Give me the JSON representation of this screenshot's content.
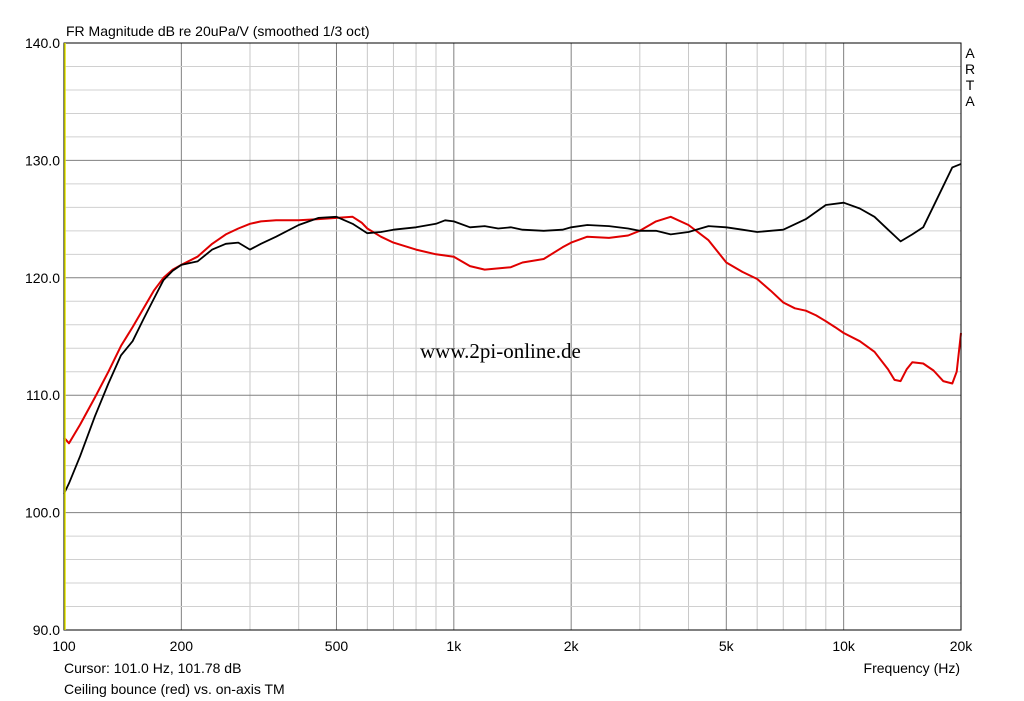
{
  "chart_data": {
    "type": "line",
    "title": "FR Magnitude dB re 20uPa/V (smoothed 1/3 oct)",
    "xlabel": "Frequency (Hz)",
    "xscale": "log",
    "xlim": [
      100,
      20000
    ],
    "ylim": [
      90,
      140
    ],
    "grid": true,
    "x_ticks": [
      {
        "value": 100,
        "label": "100"
      },
      {
        "value": 200,
        "label": "200"
      },
      {
        "value": 500,
        "label": "500"
      },
      {
        "value": 1000,
        "label": "1k"
      },
      {
        "value": 2000,
        "label": "2k"
      },
      {
        "value": 5000,
        "label": "5k"
      },
      {
        "value": 10000,
        "label": "10k"
      },
      {
        "value": 20000,
        "label": "20k"
      }
    ],
    "y_ticks": [
      {
        "value": 90,
        "label": "90.0"
      },
      {
        "value": 100,
        "label": "100.0"
      },
      {
        "value": 110,
        "label": "110.0"
      },
      {
        "value": 120,
        "label": "120.0"
      },
      {
        "value": 130,
        "label": "130.0"
      },
      {
        "value": 140,
        "label": "140.0"
      }
    ],
    "series": [
      {
        "color": "#e00000",
        "x": [
          100,
          103,
          110,
          120,
          130,
          140,
          150,
          160,
          170,
          180,
          190,
          200,
          220,
          240,
          260,
          280,
          300,
          320,
          350,
          400,
          450,
          500,
          550,
          580,
          600,
          650,
          700,
          800,
          900,
          1000,
          1100,
          1200,
          1300,
          1400,
          1500,
          1700,
          1900,
          2000,
          2200,
          2500,
          2800,
          3000,
          3300,
          3600,
          4000,
          4500,
          5000,
          5500,
          6000,
          6500,
          7000,
          7500,
          8000,
          8500,
          9000,
          9500,
          10000,
          11000,
          12000,
          13000,
          13500,
          14000,
          14500,
          15000,
          16000,
          17000,
          18000,
          19000,
          19500,
          20000
        ],
        "y": [
          106.4,
          105.9,
          107.5,
          109.8,
          112.0,
          114.2,
          115.8,
          117.4,
          118.9,
          120.0,
          120.7,
          121.1,
          121.8,
          122.9,
          123.7,
          124.2,
          124.6,
          124.8,
          124.9,
          124.9,
          125.0,
          125.1,
          125.2,
          124.7,
          124.2,
          123.5,
          123.0,
          122.4,
          122.0,
          121.8,
          121.0,
          120.7,
          120.8,
          120.9,
          121.3,
          121.6,
          122.6,
          123.0,
          123.5,
          123.4,
          123.6,
          124.0,
          124.8,
          125.2,
          124.5,
          123.2,
          121.3,
          120.5,
          119.9,
          118.9,
          117.9,
          117.4,
          117.2,
          116.8,
          116.3,
          115.8,
          115.3,
          114.6,
          113.7,
          112.2,
          111.3,
          111.2,
          112.2,
          112.8,
          112.7,
          112.1,
          111.2,
          111.0,
          112.0,
          115.3
        ]
      },
      {
        "color": "#000000",
        "x": [
          100,
          103,
          110,
          120,
          130,
          140,
          150,
          160,
          170,
          180,
          190,
          200,
          220,
          240,
          260,
          280,
          300,
          320,
          350,
          400,
          450,
          500,
          550,
          600,
          650,
          700,
          800,
          900,
          950,
          1000,
          1100,
          1200,
          1300,
          1400,
          1500,
          1700,
          1900,
          2000,
          2200,
          2500,
          2800,
          3000,
          3300,
          3600,
          4000,
          4500,
          5000,
          5500,
          6000,
          7000,
          8000,
          9000,
          10000,
          11000,
          12000,
          13000,
          14000,
          15000,
          16000,
          17000,
          18000,
          19000,
          20000
        ],
        "y": [
          101.6,
          102.5,
          104.8,
          108.2,
          111.0,
          113.4,
          114.6,
          116.5,
          118.2,
          119.8,
          120.6,
          121.1,
          121.4,
          122.4,
          122.9,
          123.0,
          122.4,
          122.9,
          123.5,
          124.5,
          125.1,
          125.2,
          124.6,
          123.8,
          123.9,
          124.1,
          124.3,
          124.6,
          124.9,
          124.8,
          124.3,
          124.4,
          124.2,
          124.3,
          124.1,
          124.0,
          124.1,
          124.3,
          124.5,
          124.4,
          124.2,
          124.0,
          124.0,
          123.7,
          123.9,
          124.4,
          124.3,
          124.1,
          123.9,
          124.1,
          125.0,
          126.2,
          126.4,
          125.9,
          125.2,
          124.1,
          123.1,
          123.7,
          124.3,
          126.1,
          127.8,
          129.4,
          129.7
        ]
      }
    ]
  },
  "header": {
    "title": "FR Magnitude dB re 20uPa/V (smoothed 1/3 oct)",
    "vertical_brand": [
      "A",
      "R",
      "T",
      "A"
    ]
  },
  "watermark": "www.2pi-online.de",
  "footer": {
    "cursor_text": "Cursor: 101.0 Hz, 101.78 dB",
    "axis_title": "Frequency (Hz)",
    "caption": "Ceiling bounce (red) vs. on-axis TM"
  }
}
